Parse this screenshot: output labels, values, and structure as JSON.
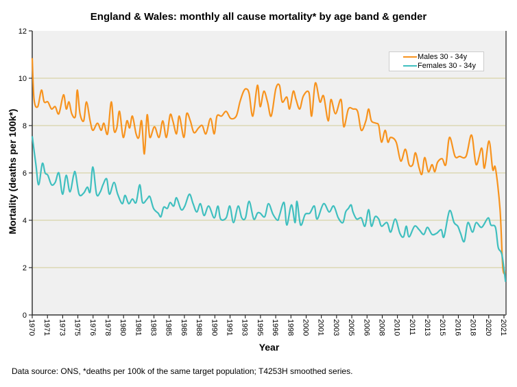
{
  "chart_data": {
    "type": "line",
    "title": "England & Wales: monthly all cause mortality* by age band & gender",
    "xlabel": "Year",
    "ylabel": "Mortality (deaths per 100k*)",
    "xlim": [
      1970,
      2021.55
    ],
    "ylim": [
      0,
      12
    ],
    "yticks": [
      0,
      2,
      4,
      6,
      8,
      10,
      12
    ],
    "xtick_labels": [
      "1970",
      "1971",
      "1973",
      "1975",
      "1976",
      "1978",
      "1980",
      "1981",
      "1983",
      "1985",
      "1986",
      "1988",
      "1990",
      "1991",
      "1993",
      "1995",
      "1996",
      "1998",
      "2000",
      "2001",
      "2003",
      "2005",
      "2006",
      "2008",
      "2010",
      "2011",
      "2013",
      "2015",
      "2016",
      "2018",
      "2020",
      "2021"
    ],
    "grid": "horizontal",
    "legend_position": "top-right",
    "series": [
      {
        "name": "Males 30 - 34y",
        "color": "#f7931e",
        "points": [
          [
            1970.0,
            10.85
          ],
          [
            1970.2,
            9.1
          ],
          [
            1970.6,
            8.8
          ],
          [
            1971.0,
            9.5
          ],
          [
            1971.3,
            9.0
          ],
          [
            1971.7,
            9.0
          ],
          [
            1972.1,
            8.7
          ],
          [
            1972.5,
            8.8
          ],
          [
            1972.9,
            8.5
          ],
          [
            1973.4,
            9.3
          ],
          [
            1973.7,
            8.7
          ],
          [
            1974.0,
            9.0
          ],
          [
            1974.3,
            8.5
          ],
          [
            1974.7,
            8.4
          ],
          [
            1974.9,
            9.5
          ],
          [
            1975.2,
            8.5
          ],
          [
            1975.6,
            8.2
          ],
          [
            1975.9,
            9.0
          ],
          [
            1976.3,
            8.2
          ],
          [
            1976.6,
            7.8
          ],
          [
            1977.1,
            8.1
          ],
          [
            1977.5,
            7.8
          ],
          [
            1977.8,
            8.1
          ],
          [
            1978.2,
            7.65
          ],
          [
            1978.6,
            9.0
          ],
          [
            1978.9,
            7.8
          ],
          [
            1979.2,
            7.9
          ],
          [
            1979.5,
            8.6
          ],
          [
            1979.9,
            7.5
          ],
          [
            1980.3,
            8.2
          ],
          [
            1980.6,
            7.9
          ],
          [
            1980.9,
            8.4
          ],
          [
            1981.3,
            7.65
          ],
          [
            1981.6,
            7.5
          ],
          [
            1981.9,
            8.2
          ],
          [
            1982.2,
            6.8
          ],
          [
            1982.5,
            8.45
          ],
          [
            1982.8,
            7.5
          ],
          [
            1983.3,
            7.95
          ],
          [
            1983.8,
            7.5
          ],
          [
            1984.2,
            8.2
          ],
          [
            1984.6,
            7.5
          ],
          [
            1985.0,
            8.45
          ],
          [
            1985.3,
            8.2
          ],
          [
            1985.7,
            7.65
          ],
          [
            1986.0,
            8.4
          ],
          [
            1986.5,
            7.5
          ],
          [
            1986.8,
            8.5
          ],
          [
            1987.2,
            8.2
          ],
          [
            1987.6,
            7.7
          ],
          [
            1988.1,
            7.9
          ],
          [
            1988.5,
            8.0
          ],
          [
            1988.9,
            7.65
          ],
          [
            1989.4,
            8.3
          ],
          [
            1989.8,
            7.65
          ],
          [
            1990.1,
            8.4
          ],
          [
            1990.6,
            8.4
          ],
          [
            1991.1,
            8.6
          ],
          [
            1991.6,
            8.3
          ],
          [
            1992.2,
            8.4
          ],
          [
            1992.6,
            9.0
          ],
          [
            1993.0,
            9.45
          ],
          [
            1993.3,
            9.55
          ],
          [
            1993.6,
            9.35
          ],
          [
            1994.0,
            8.4
          ],
          [
            1994.5,
            9.7
          ],
          [
            1994.8,
            8.8
          ],
          [
            1995.2,
            9.45
          ],
          [
            1995.6,
            9.0
          ],
          [
            1996.0,
            8.4
          ],
          [
            1996.5,
            9.55
          ],
          [
            1996.9,
            9.7
          ],
          [
            1997.2,
            9.0
          ],
          [
            1997.7,
            9.2
          ],
          [
            1998.0,
            8.7
          ],
          [
            1998.4,
            9.45
          ],
          [
            1998.7,
            9.1
          ],
          [
            1999.1,
            8.7
          ],
          [
            1999.5,
            9.25
          ],
          [
            2000.1,
            9.4
          ],
          [
            2000.4,
            8.4
          ],
          [
            2000.8,
            9.8
          ],
          [
            2001.3,
            9.0
          ],
          [
            2001.7,
            9.25
          ],
          [
            2002.2,
            8.2
          ],
          [
            2002.5,
            9.1
          ],
          [
            2003.0,
            8.5
          ],
          [
            2003.6,
            9.1
          ],
          [
            2003.9,
            7.95
          ],
          [
            2004.4,
            8.7
          ],
          [
            2004.9,
            8.7
          ],
          [
            2005.4,
            8.6
          ],
          [
            2005.8,
            7.8
          ],
          [
            2006.3,
            8.2
          ],
          [
            2006.6,
            8.7
          ],
          [
            2006.9,
            8.2
          ],
          [
            2007.4,
            8.1
          ],
          [
            2007.7,
            8.0
          ],
          [
            2008.0,
            7.3
          ],
          [
            2008.4,
            7.8
          ],
          [
            2008.7,
            7.3
          ],
          [
            2009.0,
            7.5
          ],
          [
            2009.6,
            7.3
          ],
          [
            2010.1,
            6.5
          ],
          [
            2010.6,
            7.0
          ],
          [
            2011.0,
            6.35
          ],
          [
            2011.4,
            6.35
          ],
          [
            2011.7,
            6.85
          ],
          [
            2012.1,
            6.2
          ],
          [
            2012.4,
            5.95
          ],
          [
            2012.7,
            6.65
          ],
          [
            2013.1,
            6.05
          ],
          [
            2013.5,
            6.35
          ],
          [
            2013.8,
            6.05
          ],
          [
            2014.1,
            6.45
          ],
          [
            2014.6,
            6.6
          ],
          [
            2015.0,
            6.35
          ],
          [
            2015.4,
            7.5
          ],
          [
            2016.0,
            6.7
          ],
          [
            2016.5,
            6.7
          ],
          [
            2017.2,
            6.7
          ],
          [
            2017.8,
            7.6
          ],
          [
            2018.3,
            6.35
          ],
          [
            2018.9,
            7.05
          ],
          [
            2019.2,
            6.2
          ],
          [
            2019.7,
            7.35
          ],
          [
            2020.1,
            6.15
          ],
          [
            2020.4,
            6.2
          ],
          [
            2020.9,
            4.45
          ],
          [
            2021.2,
            2.0
          ],
          [
            2021.5,
            1.8
          ]
        ]
      },
      {
        "name": "Females 30 - 34y",
        "color": "#3fbfbf",
        "points": [
          [
            1970.0,
            7.55
          ],
          [
            1970.4,
            6.35
          ],
          [
            1970.7,
            5.5
          ],
          [
            1971.1,
            6.4
          ],
          [
            1971.4,
            6.0
          ],
          [
            1971.7,
            5.9
          ],
          [
            1972.1,
            5.5
          ],
          [
            1972.5,
            5.6
          ],
          [
            1972.9,
            6.0
          ],
          [
            1973.3,
            5.1
          ],
          [
            1973.7,
            5.9
          ],
          [
            1974.1,
            5.2
          ],
          [
            1974.5,
            5.9
          ],
          [
            1974.7,
            6.0
          ],
          [
            1975.1,
            5.1
          ],
          [
            1975.6,
            5.15
          ],
          [
            1976.0,
            5.4
          ],
          [
            1976.3,
            5.2
          ],
          [
            1976.6,
            6.25
          ],
          [
            1977.0,
            5.1
          ],
          [
            1977.4,
            5.2
          ],
          [
            1977.7,
            5.5
          ],
          [
            1978.1,
            5.75
          ],
          [
            1978.4,
            5.1
          ],
          [
            1978.9,
            5.6
          ],
          [
            1979.3,
            5.1
          ],
          [
            1979.8,
            4.7
          ],
          [
            1980.1,
            5.05
          ],
          [
            1980.5,
            4.7
          ],
          [
            1980.9,
            4.9
          ],
          [
            1981.3,
            4.75
          ],
          [
            1981.7,
            5.5
          ],
          [
            1982.0,
            4.75
          ],
          [
            1982.5,
            4.9
          ],
          [
            1982.8,
            5.0
          ],
          [
            1983.2,
            4.5
          ],
          [
            1983.7,
            4.3
          ],
          [
            1984.0,
            4.15
          ],
          [
            1984.3,
            4.55
          ],
          [
            1984.7,
            4.5
          ],
          [
            1985.0,
            4.75
          ],
          [
            1985.4,
            4.6
          ],
          [
            1985.7,
            4.95
          ],
          [
            1986.2,
            4.45
          ],
          [
            1986.6,
            4.6
          ],
          [
            1987.1,
            5.1
          ],
          [
            1987.5,
            4.7
          ],
          [
            1987.9,
            4.35
          ],
          [
            1988.3,
            4.7
          ],
          [
            1988.7,
            4.2
          ],
          [
            1989.2,
            4.6
          ],
          [
            1989.8,
            4.1
          ],
          [
            1990.2,
            4.6
          ],
          [
            1990.5,
            4.05
          ],
          [
            1991.1,
            4.1
          ],
          [
            1991.5,
            4.6
          ],
          [
            1991.9,
            3.9
          ],
          [
            1992.4,
            4.6
          ],
          [
            1992.8,
            4.1
          ],
          [
            1993.2,
            4.1
          ],
          [
            1993.6,
            4.8
          ],
          [
            1994.1,
            4.05
          ],
          [
            1994.5,
            4.3
          ],
          [
            1994.8,
            4.3
          ],
          [
            1995.3,
            4.15
          ],
          [
            1995.7,
            4.7
          ],
          [
            1996.2,
            4.25
          ],
          [
            1996.7,
            4.0
          ],
          [
            1996.9,
            4.2
          ],
          [
            1997.4,
            4.75
          ],
          [
            1997.7,
            3.8
          ],
          [
            1998.2,
            4.65
          ],
          [
            1998.6,
            3.9
          ],
          [
            1998.8,
            4.8
          ],
          [
            1999.2,
            3.8
          ],
          [
            1999.7,
            4.25
          ],
          [
            2000.2,
            4.3
          ],
          [
            2000.7,
            4.6
          ],
          [
            2001.0,
            4.05
          ],
          [
            2001.7,
            4.7
          ],
          [
            2002.3,
            4.35
          ],
          [
            2002.8,
            4.6
          ],
          [
            2003.3,
            4.1
          ],
          [
            2003.8,
            3.9
          ],
          [
            2004.1,
            4.35
          ],
          [
            2004.4,
            4.5
          ],
          [
            2004.7,
            4.65
          ],
          [
            2004.9,
            4.35
          ],
          [
            2005.3,
            4.05
          ],
          [
            2005.8,
            4.1
          ],
          [
            2006.2,
            3.75
          ],
          [
            2006.6,
            4.45
          ],
          [
            2006.9,
            3.75
          ],
          [
            2007.3,
            4.15
          ],
          [
            2007.7,
            4.05
          ],
          [
            2008.0,
            3.75
          ],
          [
            2008.6,
            3.9
          ],
          [
            2009.0,
            3.5
          ],
          [
            2009.5,
            4.05
          ],
          [
            2010.0,
            3.45
          ],
          [
            2010.4,
            3.3
          ],
          [
            2010.7,
            3.75
          ],
          [
            2011.0,
            3.3
          ],
          [
            2011.6,
            3.75
          ],
          [
            2012.1,
            3.6
          ],
          [
            2012.6,
            3.4
          ],
          [
            2013.0,
            3.7
          ],
          [
            2013.5,
            3.4
          ],
          [
            2014.0,
            3.45
          ],
          [
            2014.5,
            3.6
          ],
          [
            2014.8,
            3.3
          ],
          [
            2015.4,
            4.4
          ],
          [
            2015.9,
            3.9
          ],
          [
            2016.3,
            3.75
          ],
          [
            2016.6,
            3.45
          ],
          [
            2017.0,
            3.1
          ],
          [
            2017.4,
            3.9
          ],
          [
            2017.9,
            3.5
          ],
          [
            2018.3,
            3.9
          ],
          [
            2018.9,
            3.7
          ],
          [
            2019.6,
            4.1
          ],
          [
            2019.9,
            3.8
          ],
          [
            2020.4,
            3.7
          ],
          [
            2020.7,
            2.85
          ],
          [
            2021.1,
            2.55
          ],
          [
            2021.5,
            1.4
          ]
        ]
      }
    ]
  },
  "source_note": "Data source: ONS, *deaths per 100k of the same target population; T4253H smoothed series."
}
